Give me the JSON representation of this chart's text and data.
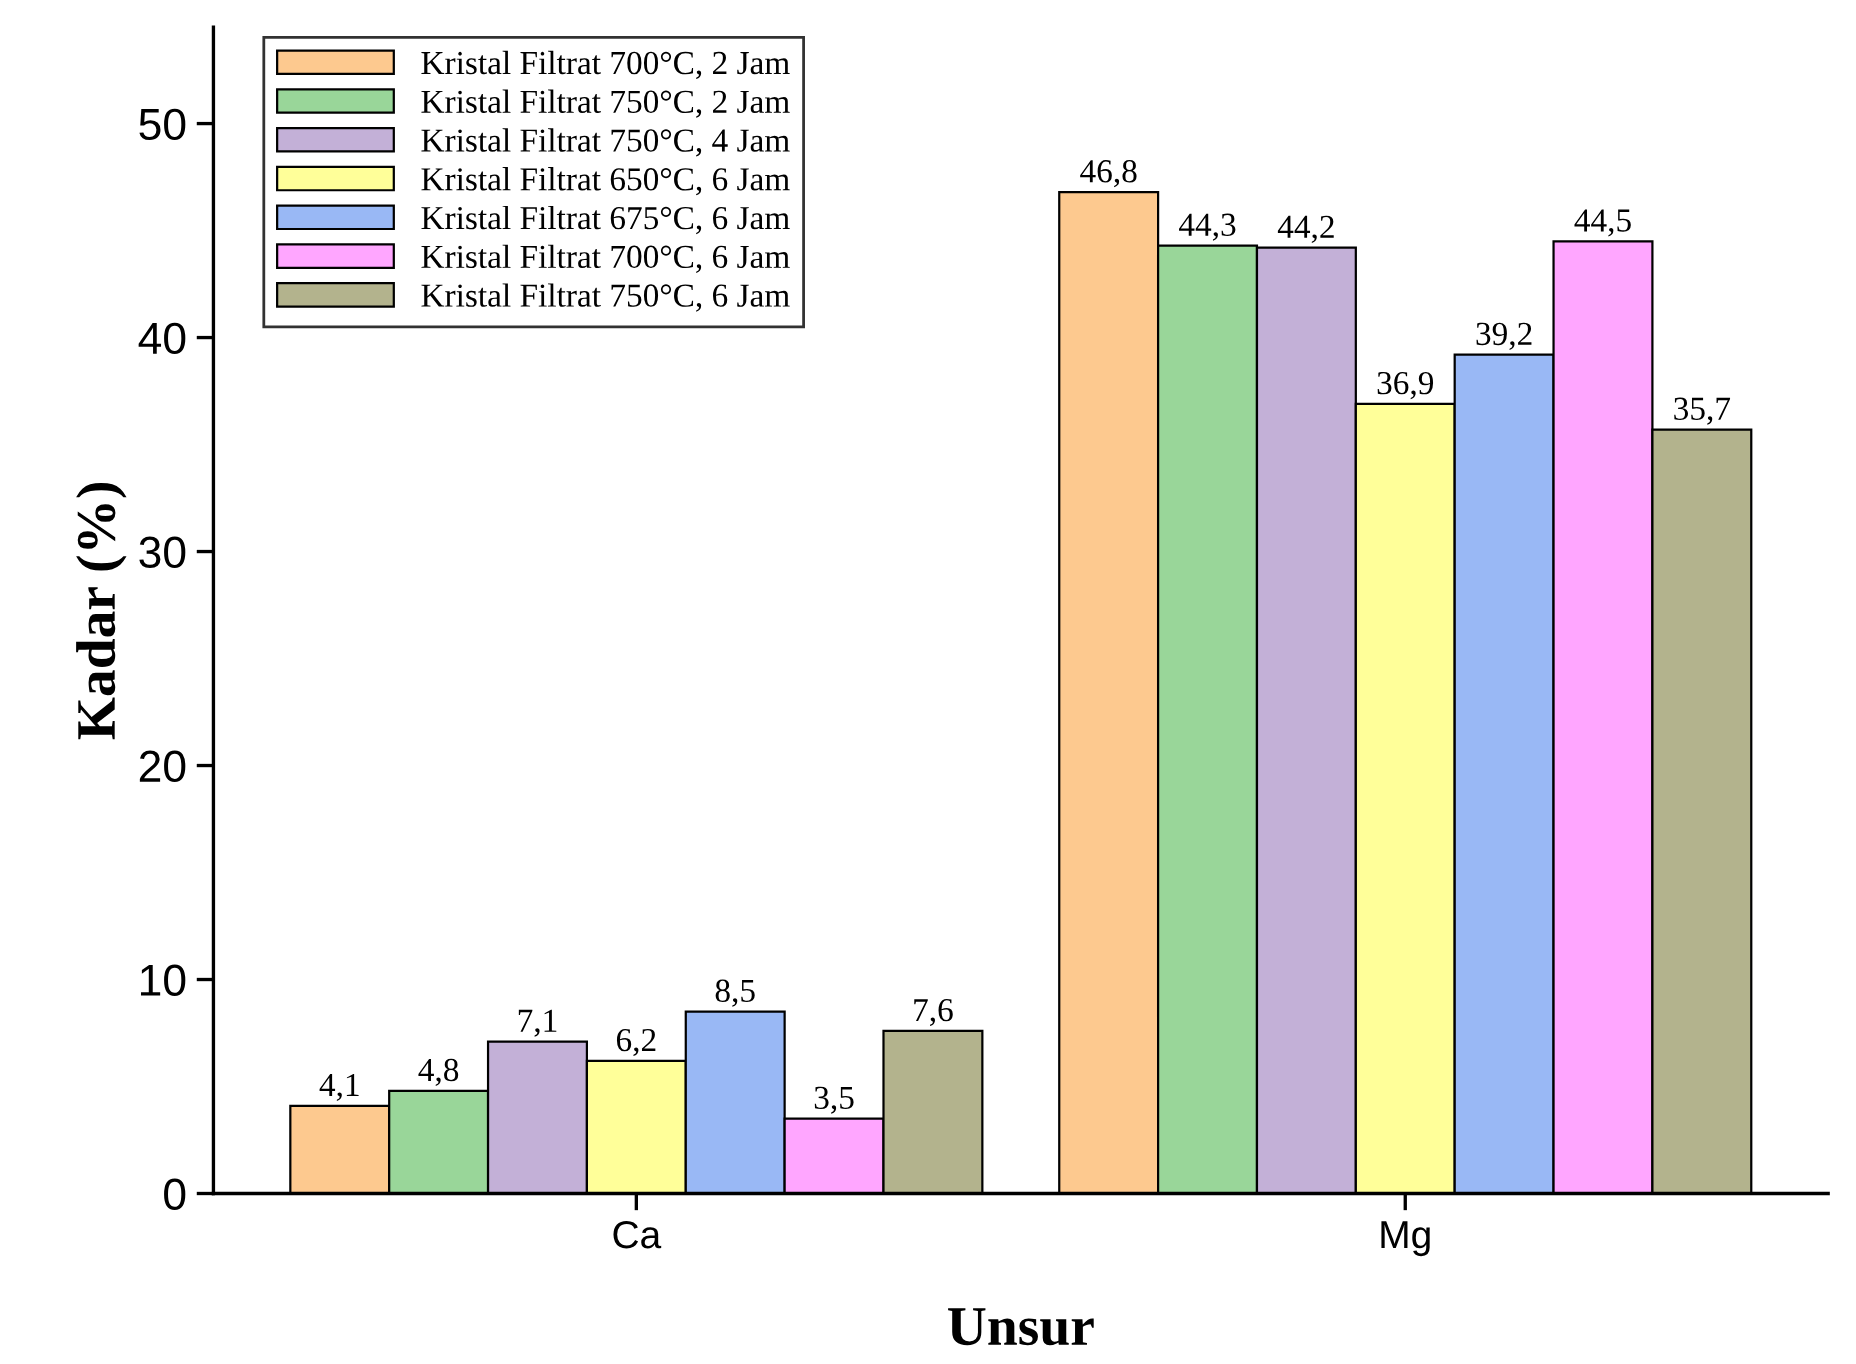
{
  "chart_data": {
    "type": "bar",
    "xlabel": "Unsur",
    "ylabel": "Kadar (%)",
    "categories": [
      "Ca",
      "Mg"
    ],
    "series": [
      {
        "name": "Kristal Filtrat 700°C, 2 Jam",
        "color": "#fdc98f",
        "values": [
          4.1,
          46.8
        ],
        "value_labels": [
          "4,1",
          "46,8"
        ]
      },
      {
        "name": "Kristal Filtrat 750°C, 2 Jam",
        "color": "#99d699",
        "values": [
          4.8,
          44.3
        ],
        "value_labels": [
          "4,8",
          "44,3"
        ]
      },
      {
        "name": "Kristal Filtrat 750°C, 4 Jam",
        "color": "#c3b0d7",
        "values": [
          7.1,
          44.2
        ],
        "value_labels": [
          "7,1",
          "44,2"
        ]
      },
      {
        "name": "Kristal Filtrat 650°C, 6 Jam",
        "color": "#ffff99",
        "values": [
          6.2,
          36.9
        ],
        "value_labels": [
          "6,2",
          "36,9"
        ]
      },
      {
        "name": "Kristal Filtrat 675°C, 6 Jam",
        "color": "#99b8f5",
        "values": [
          8.5,
          39.2
        ],
        "value_labels": [
          "8,5",
          "39,2"
        ]
      },
      {
        "name": "Kristal Filtrat 700°C, 6 Jam",
        "color": "#ffa6ff",
        "values": [
          3.5,
          44.5
        ],
        "value_labels": [
          "3,5",
          "44,5"
        ]
      },
      {
        "name": "Kristal Filtrat 750°C, 6 Jam",
        "color": "#b3b38d",
        "values": [
          7.6,
          35.7
        ],
        "value_labels": [
          "7,6",
          "35,7"
        ]
      }
    ],
    "ylim": [
      0,
      54.5
    ],
    "yticks": [
      0,
      10,
      20,
      30,
      40,
      50
    ],
    "grid": false,
    "legend": "top left"
  }
}
